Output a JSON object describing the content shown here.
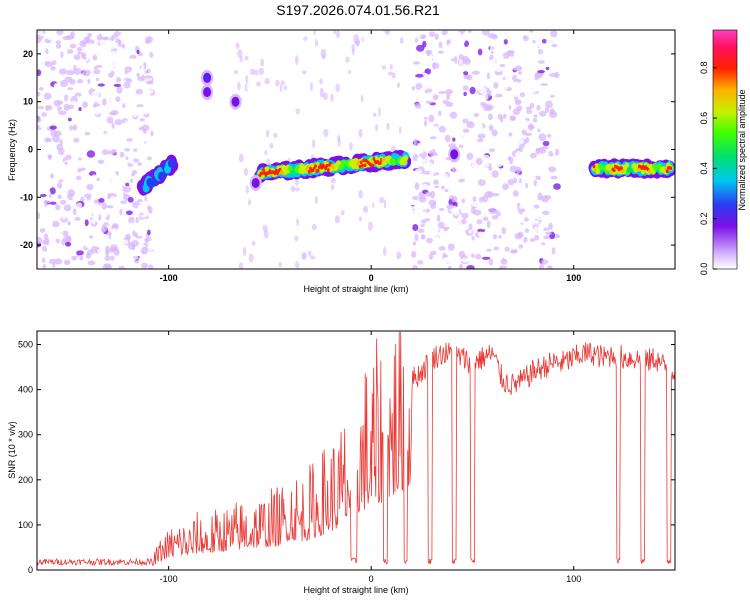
{
  "figure": {
    "title": "S197.2026.074.01.56.R21"
  },
  "chart_data": [
    {
      "type": "heatmap",
      "title": "S197.2026.074.01.56.R21",
      "xlabel": "Height of straight line (km)",
      "ylabel": "Frequency (Hz)",
      "xlim": [
        -165,
        150
      ],
      "ylim": [
        -25,
        25
      ],
      "xticks": [
        -100,
        0,
        100
      ],
      "xtick_labels": [
        "-100",
        "0",
        "100"
      ],
      "yticks": [
        20,
        10,
        0,
        -10,
        -20
      ],
      "ytick_labels": [
        "20",
        "10",
        "0",
        "-10",
        "-20"
      ],
      "colorbar": {
        "label": "Normalized spectral amplitude",
        "range": [
          0.0,
          0.95
        ],
        "ticks": [
          0.0,
          0.2,
          0.4,
          0.6,
          0.8
        ],
        "tick_labels": [
          "0.0",
          "0.2",
          "0.4",
          "0.6",
          "0.8"
        ]
      },
      "blank_bands_km": [
        [
          -108,
          -86
        ],
        [
          -79,
          -67
        ],
        [
          17,
          20
        ],
        [
          42,
          44
        ],
        [
          92,
          110
        ]
      ],
      "noise_bands_km": [
        [
          -165,
          -108
        ],
        [
          20,
          92
        ]
      ],
      "signal_segments": [
        {
          "x_start": -113,
          "x_end": -98,
          "freq_start": -8,
          "freq_end": -3,
          "peak": 0.4
        },
        {
          "x_start": -55,
          "x_end": 17,
          "freq_start": -5,
          "freq_end": -2,
          "peak": 0.95
        },
        {
          "x_start": 110,
          "x_end": 148,
          "freq_start": -4,
          "freq_end": -4,
          "peak": 0.9
        }
      ],
      "signal_blobs": [
        {
          "x": -81,
          "freq": 15,
          "peak": 0.3
        },
        {
          "x": -81,
          "freq": 12,
          "peak": 0.25
        },
        {
          "x": -67,
          "freq": 10,
          "peak": 0.25
        },
        {
          "x": -57,
          "freq": -7,
          "peak": 0.2
        },
        {
          "x": 41,
          "freq": -1,
          "peak": 0.2
        }
      ]
    },
    {
      "type": "line",
      "xlabel": "Height of straight line (km)",
      "ylabel": "SNR (10 * v/v)",
      "xlim": [
        -165,
        150
      ],
      "ylim": [
        0,
        530
      ],
      "xticks": [
        -100,
        0,
        100
      ],
      "xtick_labels": [
        "-100",
        "0",
        "100"
      ],
      "yticks": [
        0,
        100,
        200,
        300,
        400,
        500
      ],
      "ytick_labels": [
        "0",
        "100",
        "200",
        "300",
        "400",
        "500"
      ],
      "series": [
        {
          "name": "SNR",
          "color": "#e83a36",
          "x": [
            -165,
            -145,
            -125,
            -108,
            -105,
            -100,
            -95,
            -90,
            -85,
            -80,
            -75,
            -70,
            -65,
            -60,
            -55,
            -50,
            -45,
            -40,
            -35,
            -30,
            -25,
            -20,
            -15,
            -10,
            -5,
            0,
            5,
            10,
            15,
            20,
            25,
            30,
            35,
            40,
            45,
            50,
            55,
            60,
            65,
            70,
            75,
            80,
            85,
            90,
            95,
            100,
            105,
            110,
            115,
            120,
            125,
            130,
            135,
            140,
            145,
            150
          ],
          "values": [
            18,
            18,
            18,
            18,
            40,
            60,
            75,
            70,
            85,
            80,
            90,
            95,
            100,
            110,
            110,
            115,
            120,
            150,
            140,
            150,
            170,
            190,
            210,
            260,
            290,
            310,
            330,
            360,
            390,
            420,
            440,
            470,
            480,
            480,
            470,
            460,
            470,
            480,
            420,
            410,
            420,
            440,
            450,
            460,
            460,
            470,
            480,
            480,
            470,
            480,
            470,
            470,
            460,
            470,
            450,
            440
          ],
          "dropouts_km": [
            [
              -10,
              -7
            ],
            [
              6,
              8
            ],
            [
              16,
              18
            ],
            [
              28,
              30
            ],
            [
              40,
              42
            ],
            [
              49,
              51
            ],
            [
              121,
              123
            ],
            [
              133,
              135
            ],
            [
              146,
              148
            ]
          ],
          "dropout_value": 20
        }
      ]
    }
  ]
}
